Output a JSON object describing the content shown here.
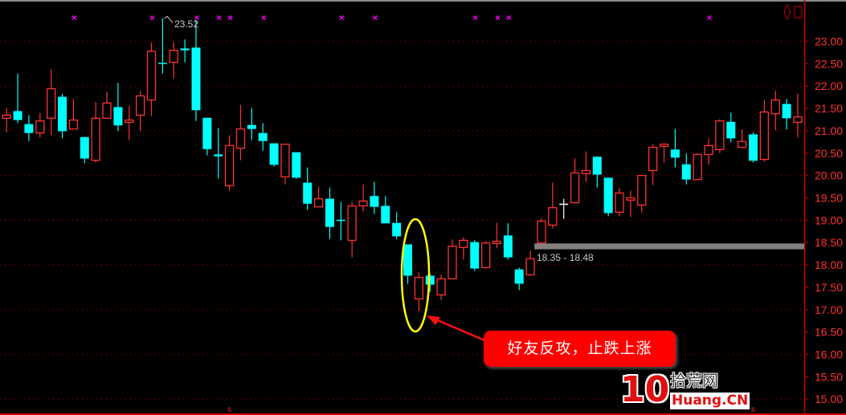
{
  "chart_data": {
    "type": "candlestick",
    "title": "",
    "ylim": [
      15,
      23.6
    ],
    "y_ticks": [
      "23.00",
      "22.50",
      "22.00",
      "21.50",
      "21.00",
      "20.50",
      "20.00",
      "19.50",
      "19.00",
      "18.50",
      "18.00",
      "17.50",
      "17.00",
      "16.50",
      "16.00",
      "15.50",
      "15.00"
    ],
    "grid": "dotted horizontal at whole-number prices",
    "colors": {
      "up": "#ff3232",
      "down": "#00ffff",
      "doji": "#ffffff",
      "grid": "#aa0000",
      "axis": "#cc0000",
      "marker": "#ff00ff",
      "zone": "#808080",
      "ellipse": "#ffff00",
      "callout": "#ff0000"
    },
    "candles_ohlc": [
      [
        21.28,
        21.51,
        20.97,
        21.35
      ],
      [
        21.44,
        22.28,
        21.17,
        21.24
      ],
      [
        21.15,
        21.35,
        20.77,
        20.95
      ],
      [
        20.95,
        21.4,
        20.85,
        21.22
      ],
      [
        21.28,
        22.37,
        20.9,
        21.94
      ],
      [
        21.76,
        21.83,
        20.83,
        20.99
      ],
      [
        21.04,
        21.71,
        21.04,
        21.24
      ],
      [
        20.86,
        20.86,
        20.27,
        20.38
      ],
      [
        20.34,
        21.64,
        20.29,
        21.28
      ],
      [
        21.28,
        21.87,
        21.28,
        21.62
      ],
      [
        21.53,
        22.07,
        20.99,
        21.12
      ],
      [
        21.19,
        21.56,
        20.79,
        21.24
      ],
      [
        21.35,
        21.89,
        20.99,
        21.78
      ],
      [
        21.69,
        22.98,
        21.33,
        22.78
      ],
      [
        22.52,
        23.52,
        22.28,
        22.5
      ],
      [
        22.53,
        22.98,
        22.17,
        22.8
      ],
      [
        22.84,
        23.04,
        22.53,
        22.8
      ],
      [
        22.86,
        23.47,
        21.22,
        21.46
      ],
      [
        21.29,
        21.29,
        20.45,
        20.59
      ],
      [
        20.47,
        21.06,
        19.93,
        20.43
      ],
      [
        19.77,
        20.9,
        19.66,
        20.67
      ],
      [
        20.61,
        21.58,
        20.34,
        21.04
      ],
      [
        21.13,
        21.51,
        20.79,
        21.04
      ],
      [
        20.95,
        21.17,
        20.56,
        20.77
      ],
      [
        20.72,
        20.72,
        20.2,
        20.24
      ],
      [
        19.97,
        20.7,
        19.8,
        20.7
      ],
      [
        20.52,
        20.52,
        19.93,
        19.95
      ],
      [
        19.84,
        20.18,
        19.23,
        19.37
      ],
      [
        19.3,
        19.75,
        19.3,
        19.48
      ],
      [
        19.48,
        19.73,
        18.58,
        18.85
      ],
      [
        19.01,
        19.41,
        18.55,
        19.0
      ],
      [
        18.55,
        19.41,
        18.17,
        19.32
      ],
      [
        19.32,
        19.8,
        19.2,
        19.43
      ],
      [
        19.54,
        19.86,
        19.14,
        19.3
      ],
      [
        19.32,
        19.54,
        18.93,
        18.93
      ],
      [
        18.94,
        19.18,
        18.58,
        18.64
      ],
      [
        18.46,
        18.46,
        17.58,
        17.76
      ],
      [
        17.24,
        17.83,
        16.97,
        17.72
      ],
      [
        17.76,
        17.81,
        17.4,
        17.56
      ],
      [
        17.33,
        17.78,
        17.22,
        17.69
      ],
      [
        17.69,
        18.57,
        17.69,
        18.42
      ],
      [
        18.39,
        18.62,
        18.12,
        18.55
      ],
      [
        18.51,
        18.55,
        17.87,
        17.92
      ],
      [
        17.94,
        18.53,
        17.92,
        18.49
      ],
      [
        18.48,
        18.94,
        18.37,
        18.53
      ],
      [
        18.66,
        18.93,
        18.12,
        18.17
      ],
      [
        17.9,
        17.94,
        17.44,
        17.58
      ],
      [
        17.78,
        18.32,
        17.76,
        18.14
      ],
      [
        18.49,
        19.05,
        18.48,
        18.98
      ],
      [
        18.89,
        19.84,
        18.82,
        19.28
      ],
      [
        19.37,
        19.48,
        19.03,
        19.37
      ],
      [
        19.39,
        20.38,
        19.39,
        20.06
      ],
      [
        20.04,
        20.54,
        19.86,
        20.11
      ],
      [
        20.42,
        20.42,
        19.73,
        20.02
      ],
      [
        19.95,
        19.95,
        19.09,
        19.16
      ],
      [
        19.18,
        19.72,
        19.09,
        19.61
      ],
      [
        19.45,
        19.66,
        19.07,
        19.5
      ],
      [
        19.34,
        20.02,
        19.16,
        20.0
      ],
      [
        20.11,
        20.7,
        19.79,
        20.63
      ],
      [
        20.65,
        20.72,
        20.29,
        20.7
      ],
      [
        20.58,
        21.04,
        20.18,
        20.4
      ],
      [
        20.25,
        20.5,
        19.8,
        19.91
      ],
      [
        19.91,
        20.5,
        19.91,
        20.47
      ],
      [
        20.47,
        20.83,
        20.24,
        20.67
      ],
      [
        20.58,
        21.26,
        20.5,
        21.22
      ],
      [
        21.2,
        21.4,
        20.74,
        20.83
      ],
      [
        20.63,
        21.03,
        20.61,
        20.76
      ],
      [
        20.92,
        20.97,
        20.29,
        20.33
      ],
      [
        20.36,
        21.69,
        20.31,
        21.42
      ],
      [
        21.38,
        21.9,
        21.01,
        21.69
      ],
      [
        21.6,
        21.71,
        21.03,
        21.28
      ],
      [
        21.19,
        21.83,
        20.85,
        21.31
      ]
    ],
    "signal_markers_top_candle_index": [
      6,
      13,
      17,
      19,
      20,
      23,
      30,
      33,
      42,
      44,
      45,
      63
    ],
    "signal_markers_bottom_candle_index": [
      20,
      67
    ],
    "bottom_marker_text": "s",
    "high_label": "23.52",
    "high_label_candle_index": 14,
    "zone": {
      "low": 18.35,
      "high": 18.48,
      "label": "18.35 - 18.48",
      "start_candle_index": 47
    },
    "highlight_candle_indices": [
      36,
      37
    ],
    "annotation": "好友反攻，止跌上涨"
  },
  "logo": {
    "number": "10",
    "cn": "拾荒网",
    "en": "Huang.CN"
  }
}
